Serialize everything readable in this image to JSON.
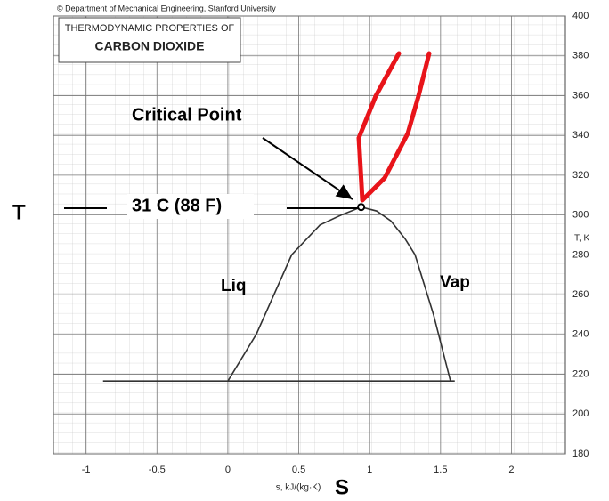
{
  "chart_data": {
    "type": "line",
    "copyright": "© Department of Mechanical Engineering, Stanford University",
    "title": "THERMODYNAMIC PROPERTIES OF",
    "subtitle": "CARBON DIOXIDE",
    "x_label": "s, kJ/(kg·K)",
    "y_label": "T, K",
    "xlim": [
      -1.23,
      2.38
    ],
    "ylim": [
      180,
      400
    ],
    "xticks": [
      -1,
      -0.5,
      0,
      0.5,
      1,
      1.5,
      2
    ],
    "yticks": [
      180,
      200,
      220,
      240,
      260,
      280,
      300,
      320,
      340,
      360,
      380,
      400
    ],
    "grid": true,
    "series": [
      {
        "name": "saturated liquid line",
        "color": "#333333",
        "x": [
          0.0,
          0.2,
          0.45,
          0.65,
          0.8,
          0.94
        ],
        "values": [
          216.6,
          240,
          280,
          295,
          300,
          304
        ]
      },
      {
        "name": "saturated vapor line",
        "color": "#333333",
        "x": [
          0.94,
          1.05,
          1.15,
          1.25,
          1.32,
          1.45,
          1.57
        ],
        "values": [
          304,
          302,
          297,
          288,
          280,
          250,
          216.6
        ]
      },
      {
        "name": "triple point line",
        "color": "#333333",
        "x": [
          -0.88,
          1.6
        ],
        "values": [
          216.6,
          216.6
        ]
      }
    ],
    "annotations": {
      "critical_point": "Critical Point",
      "critical_temperature": "31 C (88 F)",
      "t_axis": "T",
      "s_axis": "S",
      "liquid": "Liq",
      "vapor": "Vap"
    }
  }
}
